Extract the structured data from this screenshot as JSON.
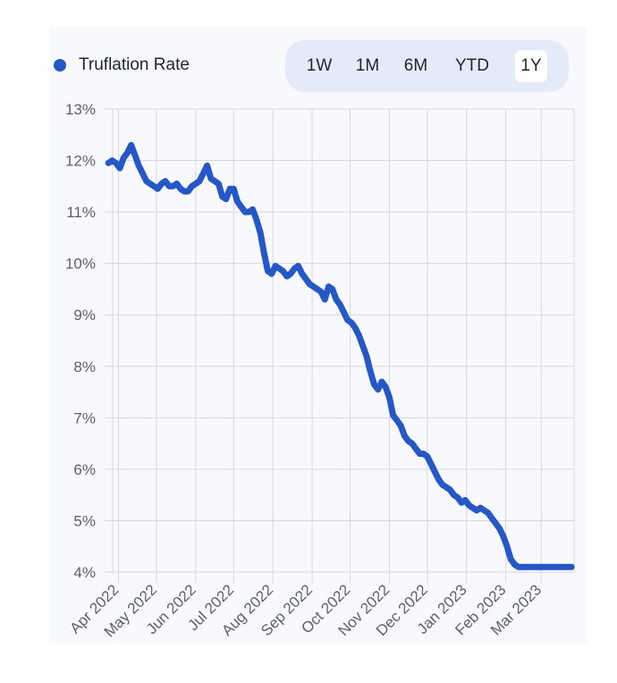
{
  "legend": {
    "label": "Truflation Rate",
    "color": "#2557c7"
  },
  "range_selector": {
    "options": [
      "1W",
      "1M",
      "6M",
      "YTD",
      "1Y"
    ],
    "selected": "1Y"
  },
  "colors": {
    "line": "#2557c7",
    "grid": "#d6d8de",
    "tick_text": "#5a5f6b",
    "card": "#f8f9fd"
  },
  "chart_data": {
    "type": "line",
    "title": "",
    "xlabel": "",
    "ylabel": "",
    "ylim": [
      4,
      13
    ],
    "y_ticks": [
      4,
      5,
      6,
      7,
      8,
      9,
      10,
      11,
      12,
      13
    ],
    "y_tick_format": "{v}%",
    "x_ticks": [
      "Apr 2022",
      "May 2022",
      "Jun 2022",
      "Jul 2022",
      "Aug 2022",
      "Sep 2022",
      "Oct 2022",
      "Nov 2022",
      "Dec 2022",
      "Jan 2023",
      "Feb 2023",
      "Mar 2023"
    ],
    "grid": true,
    "legend_position": "top-left",
    "series": [
      {
        "name": "Truflation Rate",
        "x": [
          "2022-03-24",
          "2022-03-27",
          "2022-03-30",
          "2022-04-02",
          "2022-04-05",
          "2022-04-08",
          "2022-04-11",
          "2022-04-14",
          "2022-04-17",
          "2022-04-20",
          "2022-04-23",
          "2022-04-26",
          "2022-04-29",
          "2022-05-02",
          "2022-05-05",
          "2022-05-08",
          "2022-05-11",
          "2022-05-14",
          "2022-05-17",
          "2022-05-20",
          "2022-05-23",
          "2022-05-26",
          "2022-05-29",
          "2022-06-01",
          "2022-06-04",
          "2022-06-07",
          "2022-06-10",
          "2022-06-13",
          "2022-06-16",
          "2022-06-19",
          "2022-06-22",
          "2022-06-25",
          "2022-06-28",
          "2022-07-01",
          "2022-07-04",
          "2022-07-07",
          "2022-07-10",
          "2022-07-13",
          "2022-07-16",
          "2022-07-19",
          "2022-07-22",
          "2022-07-25",
          "2022-07-28",
          "2022-07-31",
          "2022-08-03",
          "2022-08-06",
          "2022-08-09",
          "2022-08-12",
          "2022-08-15",
          "2022-08-18",
          "2022-08-21",
          "2022-08-24",
          "2022-08-27",
          "2022-08-30",
          "2022-09-02",
          "2022-09-05",
          "2022-09-08",
          "2022-09-11",
          "2022-09-14",
          "2022-09-17",
          "2022-09-20",
          "2022-09-23",
          "2022-09-26",
          "2022-09-29",
          "2022-10-02",
          "2022-10-05",
          "2022-10-08",
          "2022-10-11",
          "2022-10-14",
          "2022-10-17",
          "2022-10-20",
          "2022-10-23",
          "2022-10-26",
          "2022-10-29",
          "2022-11-01",
          "2022-11-04",
          "2022-11-07",
          "2022-11-10",
          "2022-11-13",
          "2022-11-16",
          "2022-11-19",
          "2022-11-22",
          "2022-11-25",
          "2022-11-28",
          "2022-12-01",
          "2022-12-04",
          "2022-12-07",
          "2022-12-10",
          "2022-12-13",
          "2022-12-16",
          "2022-12-19",
          "2022-12-22",
          "2022-12-25",
          "2022-12-28",
          "2022-12-31",
          "2023-01-03",
          "2023-01-06",
          "2023-01-09",
          "2023-01-12",
          "2023-01-15",
          "2023-01-18",
          "2023-01-21",
          "2023-01-24",
          "2023-01-27",
          "2023-01-30",
          "2023-02-02",
          "2023-02-05",
          "2023-02-08",
          "2023-02-11",
          "2023-02-14",
          "2023-02-17",
          "2023-02-20",
          "2023-02-23",
          "2023-02-26",
          "2023-03-01",
          "2023-03-04",
          "2023-03-07",
          "2023-03-10",
          "2023-03-13",
          "2023-03-16",
          "2023-03-19",
          "2023-03-22",
          "2023-03-25"
        ],
        "values": [
          11.95,
          12.0,
          11.95,
          11.85,
          12.05,
          12.15,
          12.3,
          12.1,
          11.9,
          11.75,
          11.6,
          11.55,
          11.5,
          11.45,
          11.55,
          11.6,
          11.5,
          11.5,
          11.55,
          11.45,
          11.4,
          11.4,
          11.5,
          11.55,
          11.6,
          11.75,
          11.9,
          11.65,
          11.6,
          11.55,
          11.3,
          11.25,
          11.45,
          11.45,
          11.2,
          11.1,
          11.0,
          11.0,
          11.05,
          10.85,
          10.6,
          10.2,
          9.85,
          9.8,
          9.95,
          9.9,
          9.85,
          9.75,
          9.8,
          9.9,
          9.95,
          9.8,
          9.7,
          9.6,
          9.55,
          9.5,
          9.45,
          9.3,
          9.55,
          9.5,
          9.3,
          9.2,
          9.05,
          8.9,
          8.85,
          8.75,
          8.6,
          8.4,
          8.2,
          7.9,
          7.65,
          7.55,
          7.7,
          7.6,
          7.4,
          7.05,
          6.95,
          6.85,
          6.65,
          6.55,
          6.5,
          6.4,
          6.3,
          6.3,
          6.25,
          6.1,
          5.95,
          5.8,
          5.7,
          5.65,
          5.6,
          5.5,
          5.45,
          5.35,
          5.4,
          5.3,
          5.25,
          5.2,
          5.25,
          5.2,
          5.15,
          5.05,
          4.95,
          4.85,
          4.7,
          4.5,
          4.25,
          4.15,
          4.1,
          4.1,
          4.1,
          4.1,
          4.1,
          4.1,
          4.1,
          4.1,
          4.1,
          4.1,
          4.1,
          4.1,
          4.1,
          4.1,
          4.1
        ]
      }
    ]
  }
}
